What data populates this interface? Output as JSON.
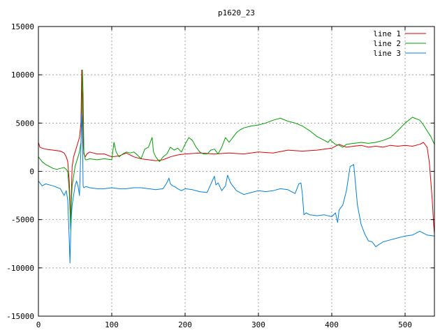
{
  "chart_data": {
    "type": "line",
    "title": "p1620_23",
    "xlabel": "",
    "ylabel": "",
    "xlim": [
      0,
      540
    ],
    "ylim": [
      -15000,
      15000
    ],
    "grid": true,
    "legend_position": "top-right",
    "x_ticks": [
      0,
      100,
      200,
      300,
      400,
      500
    ],
    "y_ticks": [
      -15000,
      -10000,
      -5000,
      0,
      5000,
      10000,
      15000
    ],
    "x_tick_labels": [
      "0",
      "100",
      "200",
      "300",
      "400",
      "500"
    ],
    "y_tick_labels": [
      "-15000",
      "-10000",
      "-5000",
      "0",
      "5000",
      "10000",
      "15000"
    ],
    "series": [
      {
        "name": "line 1",
        "color": "#e00000",
        "x": [
          0,
          2,
          5,
          10,
          20,
          30,
          35,
          38,
          40,
          42,
          43,
          44,
          45,
          46,
          48,
          50,
          52,
          54,
          56,
          58,
          59,
          60,
          61,
          62,
          64,
          66,
          70,
          80,
          90,
          100,
          110,
          120,
          130,
          140,
          150,
          160,
          170,
          180,
          190,
          200,
          220,
          240,
          260,
          280,
          300,
          320,
          340,
          360,
          380,
          400,
          410,
          420,
          430,
          440,
          450,
          460,
          470,
          480,
          490,
          500,
          510,
          520,
          525,
          530,
          533,
          535,
          537,
          539,
          540
        ],
        "values": [
          3000,
          2500,
          2400,
          2300,
          2200,
          2100,
          1900,
          1500,
          1000,
          -1000,
          -3000,
          -5500,
          -2000,
          500,
          1500,
          2000,
          2500,
          3000,
          3500,
          5000,
          10500,
          8000,
          3000,
          1800,
          1500,
          1800,
          2000,
          1800,
          1800,
          1500,
          1600,
          1900,
          1500,
          1300,
          1200,
          1100,
          1200,
          1500,
          1700,
          1800,
          1900,
          1800,
          1900,
          1800,
          2000,
          1900,
          2200,
          2100,
          2200,
          2400,
          2800,
          2500,
          2600,
          2700,
          2500,
          2600,
          2500,
          2700,
          2600,
          2700,
          2600,
          2800,
          3000,
          2500,
          1000,
          -1000,
          -3000,
          -5500,
          -6500
        ]
      },
      {
        "name": "line 2",
        "color": "#00a000",
        "x": [
          0,
          5,
          10,
          15,
          20,
          25,
          30,
          35,
          38,
          40,
          42,
          43,
          44,
          45,
          46,
          48,
          50,
          52,
          54,
          56,
          58,
          59,
          60,
          61,
          62,
          64,
          66,
          70,
          80,
          90,
          100,
          103,
          106,
          110,
          115,
          120,
          125,
          130,
          135,
          140,
          145,
          150,
          155,
          157,
          160,
          165,
          170,
          175,
          180,
          185,
          190,
          195,
          200,
          205,
          210,
          215,
          220,
          225,
          230,
          235,
          240,
          245,
          250,
          255,
          260,
          265,
          270,
          275,
          280,
          290,
          300,
          310,
          320,
          330,
          340,
          350,
          360,
          370,
          380,
          390,
          395,
          398,
          400,
          405,
          410,
          415,
          420,
          430,
          440,
          450,
          460,
          470,
          480,
          490,
          500,
          510,
          520,
          525,
          530,
          535,
          540
        ],
        "values": [
          1500,
          1000,
          700,
          500,
          300,
          200,
          300,
          400,
          200,
          0,
          -2000,
          -4000,
          -6000,
          -3000,
          -1500,
          -500,
          500,
          1000,
          1500,
          2000,
          3000,
          6000,
          10500,
          8000,
          2000,
          1200,
          1200,
          1300,
          1200,
          1300,
          1200,
          3000,
          2000,
          1500,
          1800,
          2000,
          1900,
          2000,
          1700,
          1300,
          2300,
          2500,
          3500,
          2000,
          1500,
          1000,
          1500,
          1800,
          2500,
          2200,
          2400,
          2000,
          2800,
          3500,
          3200,
          2500,
          2000,
          1800,
          1800,
          2200,
          2300,
          1800,
          2500,
          3500,
          3000,
          3500,
          4000,
          4300,
          4500,
          4700,
          4800,
          5000,
          5300,
          5500,
          5200,
          5000,
          4700,
          4200,
          3600,
          3200,
          3000,
          3300,
          3100,
          2800,
          2700,
          2500,
          2800,
          2900,
          3000,
          2900,
          3000,
          3200,
          3500,
          4200,
          5000,
          5600,
          5300,
          4800,
          4200,
          3600,
          2800
        ]
      },
      {
        "name": "line 3",
        "color": "#0080e0",
        "x": [
          0,
          5,
          10,
          20,
          30,
          35,
          38,
          40,
          42,
          43,
          44,
          45,
          46,
          48,
          50,
          52,
          54,
          56,
          58,
          59,
          60,
          61,
          62,
          64,
          66,
          70,
          80,
          90,
          100,
          110,
          120,
          130,
          140,
          150,
          160,
          170,
          175,
          178,
          180,
          183,
          186,
          190,
          195,
          200,
          210,
          220,
          230,
          240,
          242,
          245,
          250,
          255,
          258,
          262,
          265,
          270,
          280,
          290,
          300,
          310,
          320,
          330,
          340,
          350,
          355,
          358,
          360,
          362,
          365,
          370,
          380,
          390,
          400,
          405,
          408,
          410,
          415,
          420,
          425,
          430,
          432,
          435,
          440,
          445,
          450,
          455,
          460,
          470,
          480,
          490,
          500,
          510,
          520,
          530,
          540
        ],
        "values": [
          -1000,
          -1500,
          -1300,
          -1500,
          -1800,
          -2500,
          -2000,
          -3000,
          -7000,
          -9500,
          -6500,
          -4500,
          -3500,
          -2500,
          -1500,
          -1000,
          -1500,
          -2500,
          2500,
          6000,
          4000,
          -1500,
          -1700,
          -1600,
          -1600,
          -1700,
          -1800,
          -1800,
          -1700,
          -1800,
          -1800,
          -1700,
          -1700,
          -1800,
          -1900,
          -1800,
          -1200,
          -700,
          -1300,
          -1500,
          -1600,
          -1800,
          -2000,
          -1800,
          -1900,
          -2100,
          -2200,
          -500,
          -1400,
          -1200,
          -2000,
          -1500,
          -400,
          -1200,
          -1500,
          -2000,
          -2400,
          -2200,
          -2000,
          -2100,
          -2000,
          -1800,
          -1900,
          -2300,
          -1300,
          -1200,
          -2400,
          -4500,
          -4300,
          -4500,
          -4600,
          -4500,
          -4700,
          -4300,
          -5300,
          -4000,
          -3500,
          -2000,
          500,
          700,
          -1000,
          -3500,
          -5500,
          -6500,
          -7200,
          -7300,
          -7800,
          -7300,
          -7100,
          -6900,
          -6700,
          -6600,
          -6200,
          -6600,
          -6700
        ]
      }
    ]
  }
}
